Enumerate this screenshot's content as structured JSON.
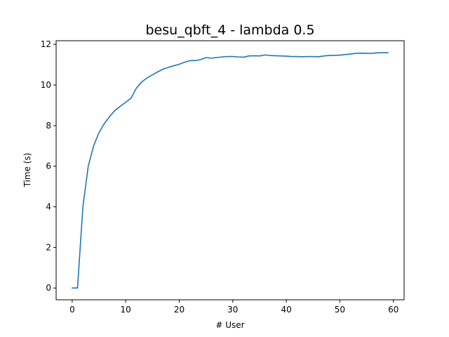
{
  "chart_data": {
    "type": "line",
    "title": "besu_qbft_4 - lambda 0.5",
    "xlabel": "# User",
    "ylabel": "Time (s)",
    "xlim": [
      -3,
      62
    ],
    "ylim": [
      -0.58,
      12.18
    ],
    "x_ticks": [
      0,
      10,
      20,
      30,
      40,
      50,
      60
    ],
    "y_ticks": [
      0,
      2,
      4,
      6,
      8,
      10,
      12
    ],
    "grid": false,
    "series": [
      {
        "color": "#1f77b4",
        "x": [
          0,
          1,
          2,
          3,
          4,
          5,
          6,
          7,
          8,
          9,
          10,
          11,
          12,
          13,
          14,
          15,
          16,
          17,
          18,
          19,
          20,
          21,
          22,
          23,
          24,
          25,
          26,
          27,
          28,
          29,
          30,
          31,
          32,
          33,
          34,
          35,
          36,
          37,
          38,
          39,
          40,
          41,
          42,
          43,
          44,
          45,
          46,
          47,
          48,
          49,
          50,
          51,
          52,
          53,
          54,
          55,
          56,
          57,
          58,
          59
        ],
        "values": [
          0.0,
          0.0,
          4.0,
          6.0,
          7.0,
          7.65,
          8.1,
          8.45,
          8.75,
          8.95,
          9.15,
          9.35,
          9.85,
          10.15,
          10.35,
          10.5,
          10.65,
          10.78,
          10.87,
          10.95,
          11.02,
          11.12,
          11.2,
          11.2,
          11.25,
          11.35,
          11.32,
          11.35,
          11.38,
          11.4,
          11.4,
          11.38,
          11.37,
          11.43,
          11.44,
          11.43,
          11.48,
          11.45,
          11.44,
          11.43,
          11.42,
          11.4,
          11.4,
          11.39,
          11.4,
          11.4,
          11.39,
          11.43,
          11.45,
          11.46,
          11.47,
          11.5,
          11.52,
          11.56,
          11.57,
          11.56,
          11.56,
          11.58,
          11.59,
          11.59
        ]
      }
    ]
  }
}
